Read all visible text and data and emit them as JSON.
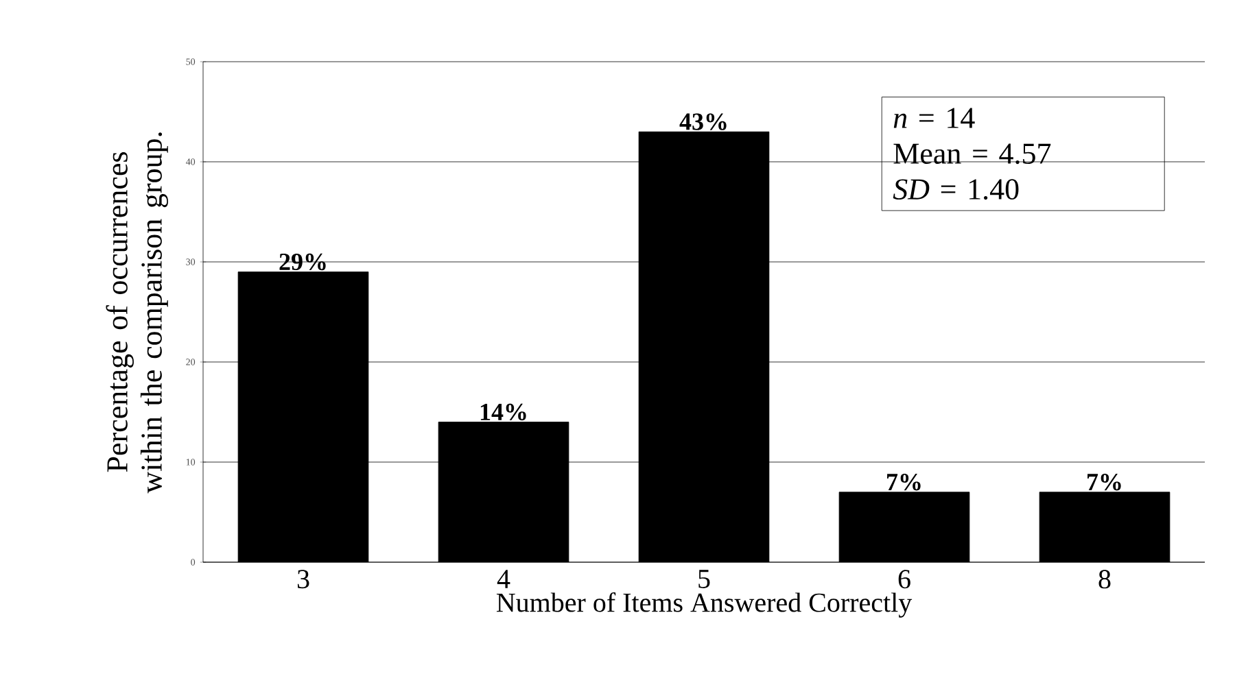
{
  "chart_data": {
    "type": "bar",
    "xlabel": "Number of Items Answered Correctly",
    "ylabel": "Percentage of occurrences within the comparison group.",
    "categories": [
      "3",
      "4",
      "5",
      "6",
      "8"
    ],
    "values": [
      29,
      14,
      43,
      7,
      7
    ],
    "value_labels": [
      "29%",
      "14%",
      "43%",
      "7%",
      "7%"
    ],
    "color": "#000000",
    "ylim": [
      0,
      50
    ],
    "yticks": [
      0,
      10,
      20,
      30,
      40,
      50
    ],
    "grid": "y",
    "annotations": [
      "*n* = 14",
      "Mean = 4.57",
      "*SD* = 1.40"
    ]
  }
}
